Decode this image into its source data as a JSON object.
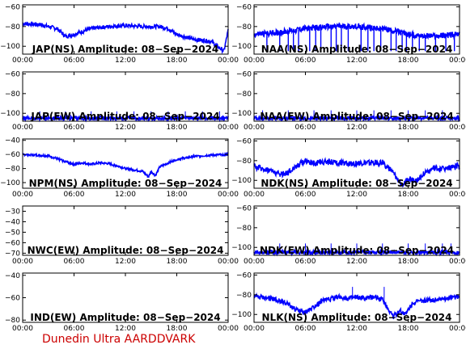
{
  "footer": "Dunedin Ultra AARDDVARK",
  "colors": {
    "trace": "#0000ff",
    "axis": "#000000",
    "footer": "#cc0000"
  },
  "chart_data": [
    {
      "type": "line",
      "title": "JAP(NS) Amplitude: 08-Sep-2024",
      "x_ticks": [
        "00:00",
        "06:00",
        "12:00",
        "18:00",
        "00:00"
      ],
      "y_ticks": [
        -100,
        -80,
        -60
      ],
      "ylim": [
        -108,
        -58
      ],
      "series": [
        {
          "x": [
            0,
            2,
            4,
            5,
            6,
            8,
            10,
            12,
            14,
            16,
            17,
            18,
            20,
            22,
            23.5,
            24
          ],
          "y": [
            -77,
            -78,
            -82,
            -90,
            -88,
            -82,
            -80,
            -79,
            -80,
            -80,
            -82,
            -88,
            -93,
            -95,
            -105,
            -84
          ],
          "noise": 2
        }
      ]
    },
    {
      "type": "line",
      "title": "NAA(NS) Amplitude: 08-Sep-2024",
      "x_ticks": [
        "00:00",
        "06:00",
        "12:00",
        "18:00",
        "00:00"
      ],
      "y_ticks": [
        -100,
        -80,
        -60
      ],
      "ylim": [
        -108,
        -58
      ],
      "series": [
        {
          "x": [
            0,
            3,
            6,
            9,
            12,
            15,
            18,
            21,
            24
          ],
          "y": [
            -88,
            -86,
            -82,
            -80,
            -80,
            -82,
            -88,
            -90,
            -88
          ],
          "noise": 3,
          "dropouts": [
            1.5,
            3,
            4,
            4.6,
            5.2,
            6.5,
            7.2,
            7.8,
            9,
            9.6,
            10.2,
            11,
            12.5,
            13.3,
            14,
            14.8,
            16,
            16.6,
            17.3,
            17.8,
            18.5,
            19.3,
            20,
            21.2,
            22.4,
            23.4
          ],
          "drop_to": -105
        }
      ]
    },
    {
      "type": "line",
      "title": "JAP(EW) Amplitude: 08-Sep-2024",
      "x_ticks": [
        "00:00",
        "06:00",
        "12:00",
        "18:00",
        "00:00"
      ],
      "y_ticks": [
        -100,
        -80,
        -60
      ],
      "ylim": [
        -108,
        -58
      ],
      "series": [
        {
          "x": [
            0,
            24
          ],
          "y": [
            -105,
            -105
          ],
          "noise": 2,
          "spikes": [
            2,
            5,
            8,
            11,
            13,
            15,
            17,
            19,
            21,
            23
          ],
          "spike_to": -98
        }
      ]
    },
    {
      "type": "line",
      "title": "NAA(EW) Amplitude: 08-Sep-2024",
      "x_ticks": [
        "00:00",
        "06:00",
        "12:00",
        "18:00",
        "00:00"
      ],
      "y_ticks": [
        -100,
        -80,
        -60
      ],
      "ylim": [
        -108,
        -58
      ],
      "series": [
        {
          "x": [
            0,
            24
          ],
          "y": [
            -105,
            -105
          ],
          "noise": 2,
          "spikes": [
            1,
            4,
            7,
            9,
            12,
            14,
            16,
            18,
            20,
            22
          ],
          "spike_to": -97
        }
      ]
    },
    {
      "type": "line",
      "title": "NPM(NS) Amplitude: 08-Sep-2024",
      "x_ticks": [
        "00:00",
        "06:00",
        "12:00",
        "18:00",
        "00:00"
      ],
      "y_ticks": [
        -100,
        -80,
        -60,
        -40
      ],
      "ylim": [
        -108,
        -38
      ],
      "series": [
        {
          "x": [
            0,
            3,
            5,
            6,
            7,
            8,
            9,
            10,
            11,
            12,
            13,
            14,
            14.7,
            15,
            15.5,
            16,
            17,
            18,
            20,
            22,
            24
          ],
          "y": [
            -60,
            -62,
            -70,
            -74,
            -72,
            -74,
            -72,
            -73,
            -76,
            -80,
            -82,
            -84,
            -92,
            -84,
            -90,
            -78,
            -72,
            -67,
            -63,
            -61,
            -60
          ],
          "noise": 1.5
        }
      ]
    },
    {
      "type": "line",
      "title": "NDK(NS) Amplitude: 08-Sep-2024",
      "x_ticks": [
        "00:00",
        "06:00",
        "12:00",
        "18:00",
        "00:00"
      ],
      "y_ticks": [
        -100,
        -80,
        -60
      ],
      "ylim": [
        -108,
        -58
      ],
      "series": [
        {
          "x": [
            0,
            2,
            3,
            4,
            5,
            6,
            7,
            8,
            10,
            12,
            14,
            15,
            16,
            16.8,
            17.5,
            18,
            19,
            20,
            21,
            22,
            24
          ],
          "y": [
            -86,
            -90,
            -94,
            -92,
            -85,
            -80,
            -83,
            -81,
            -82,
            -83,
            -82,
            -82,
            -90,
            -100,
            -104,
            -98,
            -100,
            -92,
            -88,
            -88,
            -86
          ],
          "noise": 3
        }
      ]
    },
    {
      "type": "line",
      "title": "NWC(EW) Amplitude: 08-Sep-2024",
      "x_ticks": [
        "00:00",
        "06:00",
        "12:00",
        "18:00",
        "00:00"
      ],
      "y_ticks": [
        -70,
        -60,
        -50,
        -40,
        -30
      ],
      "ylim": [
        -72,
        -25
      ],
      "series": []
    },
    {
      "type": "line",
      "title": "NDK(EW) Amplitude: 08-Sep-2024",
      "x_ticks": [
        "00:00",
        "06:00",
        "12:00",
        "18:00",
        "00:00"
      ],
      "y_ticks": [
        -100,
        -80,
        -60
      ],
      "ylim": [
        -108,
        -58
      ],
      "series": [
        {
          "x": [
            0,
            24
          ],
          "y": [
            -105,
            -105
          ],
          "noise": 2,
          "spikes": [
            3,
            6,
            9,
            12,
            15,
            18,
            20,
            22,
            23
          ],
          "spike_to": -96
        }
      ]
    },
    {
      "type": "line",
      "title": "IND(EW) Amplitude: 08-Sep-2024",
      "x_ticks": [
        "00:00",
        "06:00",
        "12:00",
        "18:00",
        "00:00"
      ],
      "y_ticks": [
        -80,
        -60,
        -40
      ],
      "ylim": [
        -82,
        -38
      ],
      "series": []
    },
    {
      "type": "line",
      "title": "NLK(NS) Amplitude: 08-Sep-2024",
      "x_ticks": [
        "00:00",
        "06:00",
        "12:00",
        "18:00",
        "00:00"
      ],
      "y_ticks": [
        -100,
        -80,
        -60
      ],
      "ylim": [
        -108,
        -58
      ],
      "series": [
        {
          "x": [
            0,
            2,
            3,
            4,
            5,
            6,
            7,
            8,
            9,
            10,
            11,
            12,
            13,
            14,
            15,
            15.7,
            16.3,
            17,
            17.7,
            18.5,
            20,
            22,
            24
          ],
          "y": [
            -82,
            -84,
            -86,
            -90,
            -96,
            -98,
            -92,
            -86,
            -84,
            -82,
            -84,
            -83,
            -84,
            -82,
            -85,
            -95,
            -102,
            -96,
            -100,
            -88,
            -86,
            -84,
            -82
          ],
          "noise": 2.5,
          "spikes": [
            11.5,
            15.2
          ],
          "spike_to": -72
        }
      ]
    }
  ]
}
